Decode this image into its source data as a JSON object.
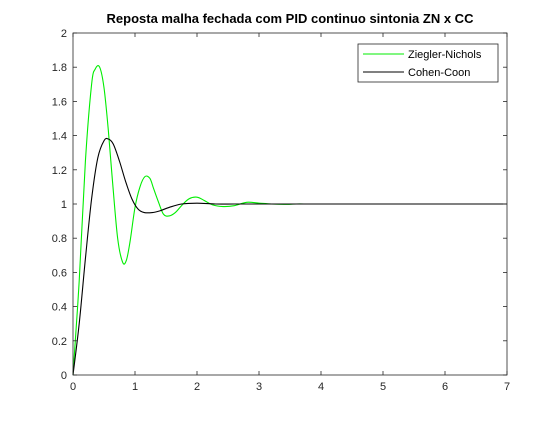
{
  "chart_data": {
    "type": "line",
    "title": "Reposta malha fechada com PID continuo sintonia ZN x CC",
    "xlabel": "",
    "ylabel": "",
    "xlim": [
      0,
      7
    ],
    "ylim": [
      0,
      2
    ],
    "x_ticks": [
      "0",
      "1",
      "2",
      "3",
      "4",
      "5",
      "6",
      "7"
    ],
    "y_ticks": [
      "0",
      "0.2",
      "0.4",
      "0.6",
      "0.8",
      "1",
      "1.2",
      "1.4",
      "1.6",
      "1.8",
      "2"
    ],
    "grid": false,
    "legend_position": "top-right",
    "series": [
      {
        "name": "Ziegler-Nichols",
        "color": "#00ee00",
        "x": [
          0,
          0.1,
          0.2,
          0.3,
          0.36,
          0.43,
          0.5,
          0.57,
          0.64,
          0.72,
          0.8,
          0.86,
          0.92,
          1.0,
          1.08,
          1.16,
          1.24,
          1.3,
          1.38,
          1.46,
          1.55,
          1.65,
          1.75,
          1.87,
          2.0,
          2.12,
          2.25,
          2.42,
          2.6,
          2.8,
          3.0,
          3.2,
          3.4,
          3.6,
          3.75
        ],
        "y": [
          0,
          0.55,
          1.25,
          1.7,
          1.79,
          1.8,
          1.68,
          1.43,
          1.12,
          0.8,
          0.66,
          0.67,
          0.78,
          0.98,
          1.1,
          1.16,
          1.15,
          1.09,
          1.01,
          0.94,
          0.93,
          0.95,
          0.99,
          1.03,
          1.04,
          1.02,
          0.995,
          0.985,
          0.99,
          1.01,
          1.005,
          1.0,
          0.998,
          1.0,
          1.0
        ]
      },
      {
        "name": "Cohen-Coon",
        "color": "#000000",
        "x": [
          0,
          0.1,
          0.2,
          0.3,
          0.4,
          0.5,
          0.57,
          0.65,
          0.75,
          0.85,
          0.95,
          1.05,
          1.15,
          1.28,
          1.4,
          1.55,
          1.75,
          2.0,
          2.3,
          2.6,
          3.0,
          4.0,
          5.0,
          6.0,
          7.0
        ],
        "y": [
          0,
          0.3,
          0.68,
          1.03,
          1.27,
          1.37,
          1.38,
          1.35,
          1.25,
          1.13,
          1.03,
          0.97,
          0.95,
          0.95,
          0.96,
          0.98,
          1.0,
          1.005,
          1.0,
          1.0,
          1.0,
          1.0,
          1.0,
          1.0,
          1.0
        ]
      }
    ]
  }
}
